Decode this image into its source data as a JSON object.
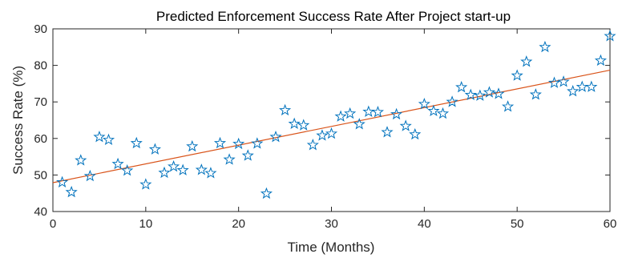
{
  "chart_data": {
    "type": "scatter",
    "title": "Predicted Enforcement Success Rate After Project start-up",
    "xlabel": "Time (Months)",
    "ylabel": "Success Rate (%)",
    "xlim": [
      0,
      60
    ],
    "ylim": [
      40,
      90
    ],
    "xticks": [
      0,
      10,
      20,
      30,
      40,
      50,
      60
    ],
    "yticks": [
      40,
      50,
      60,
      70,
      80,
      90
    ],
    "grid": false,
    "legend": "none",
    "series": [
      {
        "marker": "star",
        "color": "#0072BD",
        "points": [
          [
            1,
            48
          ],
          [
            2,
            45.3
          ],
          [
            3,
            54
          ],
          [
            4,
            49.7
          ],
          [
            5,
            60.4
          ],
          [
            6,
            59.6
          ],
          [
            7,
            53
          ],
          [
            8,
            51.2
          ],
          [
            9,
            58.7
          ],
          [
            10,
            47.4
          ],
          [
            11,
            57
          ],
          [
            12,
            50.6
          ],
          [
            13,
            52.3
          ],
          [
            14,
            51.3
          ],
          [
            15,
            57.8
          ],
          [
            16,
            51.4
          ],
          [
            17,
            50.5
          ],
          [
            18,
            58.7
          ],
          [
            19,
            54.2
          ],
          [
            20,
            58.5
          ],
          [
            21,
            55.3
          ],
          [
            22,
            58.6
          ],
          [
            23,
            44.9
          ],
          [
            24,
            60.4
          ],
          [
            25,
            67.7
          ],
          [
            26,
            64
          ],
          [
            27,
            63.6
          ],
          [
            28,
            58.2
          ],
          [
            29,
            60.8
          ],
          [
            30,
            61.3
          ],
          [
            31,
            66
          ],
          [
            32,
            66.8
          ],
          [
            33,
            63.9
          ],
          [
            34,
            67.3
          ],
          [
            35,
            67.2
          ],
          [
            36,
            61.7
          ],
          [
            37,
            66.6
          ],
          [
            38,
            63.4
          ],
          [
            39,
            61.1
          ],
          [
            40,
            69.4
          ],
          [
            41,
            67.5
          ],
          [
            42,
            66.8
          ],
          [
            43,
            70
          ],
          [
            44,
            74
          ],
          [
            45,
            71.9
          ],
          [
            46,
            71.7
          ],
          [
            47,
            72.6
          ],
          [
            48,
            72.2
          ],
          [
            49,
            68.7
          ],
          [
            50,
            77.2
          ],
          [
            51,
            81
          ],
          [
            52,
            72
          ],
          [
            53,
            85
          ],
          [
            54,
            75.2
          ],
          [
            55,
            75.5
          ],
          [
            56,
            72.9
          ],
          [
            57,
            74.1
          ],
          [
            58,
            74.1
          ],
          [
            59,
            81.3
          ],
          [
            60,
            88
          ]
        ]
      },
      {
        "type": "line",
        "color": "#D95319",
        "points": [
          [
            0,
            47.9
          ],
          [
            60,
            78.7
          ]
        ]
      }
    ]
  }
}
